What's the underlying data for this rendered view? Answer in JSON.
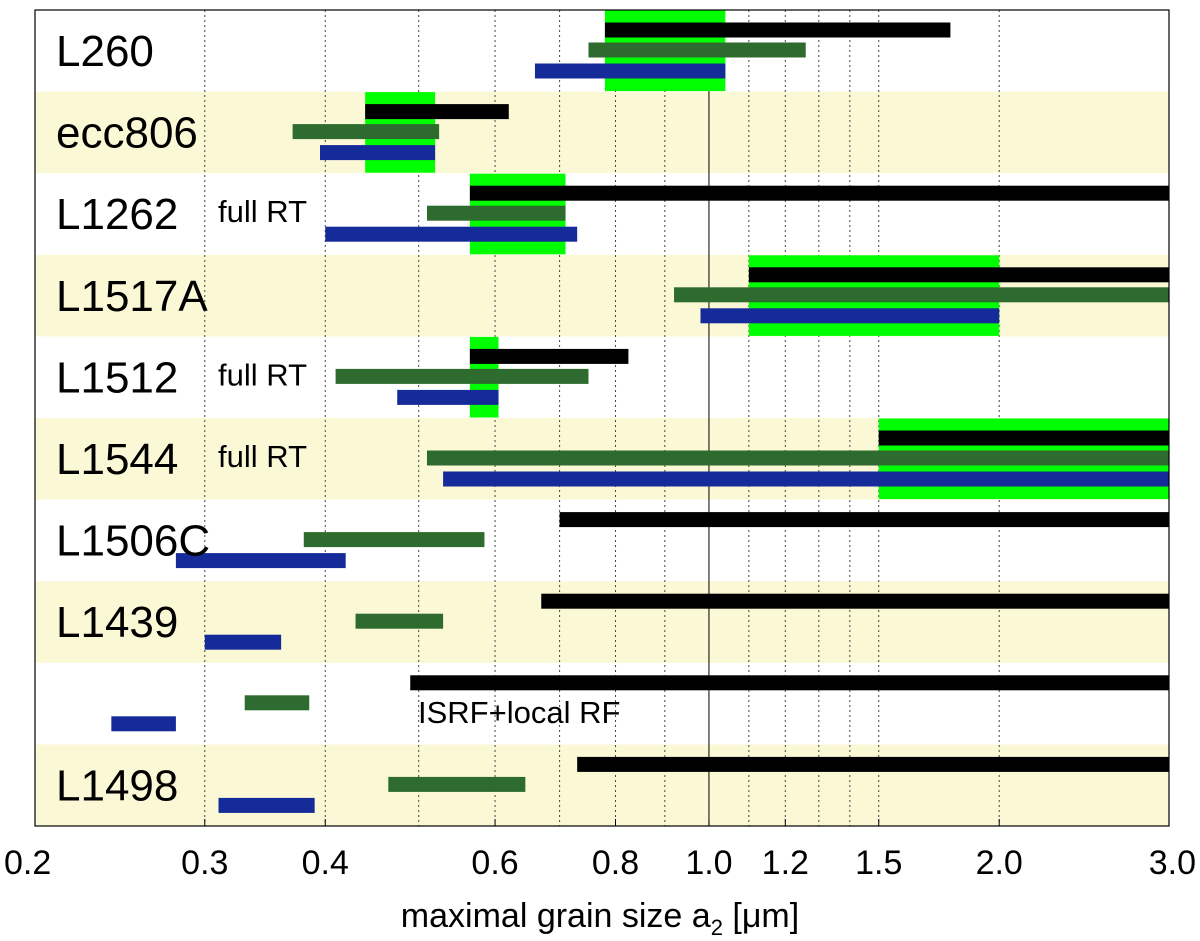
{
  "colors": {
    "shade": "#FBF8D6",
    "green_band": "#00FF00",
    "black": "#000000",
    "dark_green": "#2E6B2E",
    "blue": "#152B99"
  },
  "chart_data": {
    "type": "range-bar",
    "x_scale": "log",
    "xlim": [
      0.2,
      3.0
    ],
    "xlabel": "maximal grain size a",
    "xlabel_sub": "2",
    "xlabel_unit": " [μm]",
    "xticks": [
      0.2,
      0.3,
      0.4,
      0.6,
      0.8,
      1.0,
      1.2,
      1.5,
      2.0,
      3.0
    ],
    "xtick_labels": [
      "0.2",
      "0.3",
      "0.4",
      "0.6",
      "0.8",
      "1.0",
      "1.2",
      "1.5",
      "2.0",
      "3.0"
    ],
    "grid_dotted": [
      0.3,
      0.4,
      0.5,
      0.6,
      0.7,
      0.8,
      0.9,
      1.1,
      1.2,
      1.3,
      1.4,
      1.5,
      2.0
    ],
    "grid_solid": [
      1.0
    ],
    "series": [
      {
        "name": "black",
        "color_key": "black"
      },
      {
        "name": "dark-green",
        "color_key": "dark_green"
      },
      {
        "name": "blue",
        "color_key": "blue"
      }
    ],
    "rows": [
      {
        "label": "L260",
        "note": "",
        "shaded": false,
        "green_band": [
          0.78,
          1.04
        ],
        "black": [
          0.78,
          1.78
        ],
        "dark_green": [
          0.75,
          1.26
        ],
        "blue": [
          0.66,
          1.04
        ]
      },
      {
        "label": "ecc806",
        "note": "",
        "shaded": true,
        "green_band": [
          0.44,
          0.52
        ],
        "black": [
          0.44,
          0.62
        ],
        "dark_green": [
          0.37,
          0.525
        ],
        "blue": [
          0.395,
          0.52
        ]
      },
      {
        "label": "L1262",
        "note": "full RT",
        "shaded": false,
        "green_band": [
          0.565,
          0.71
        ],
        "black": [
          0.565,
          3.0
        ],
        "dark_green": [
          0.51,
          0.71
        ],
        "blue": [
          0.4,
          0.73
        ]
      },
      {
        "label": "L1517A",
        "note": "",
        "shaded": true,
        "green_band": [
          1.1,
          2.0
        ],
        "black": [
          1.1,
          3.0
        ],
        "dark_green": [
          0.92,
          3.0
        ],
        "blue": [
          0.98,
          2.0
        ]
      },
      {
        "label": "L1512",
        "note": "full RT",
        "shaded": false,
        "green_band": [
          0.565,
          0.605
        ],
        "black": [
          0.565,
          0.825
        ],
        "dark_green": [
          0.41,
          0.75
        ],
        "blue": [
          0.475,
          0.605
        ]
      },
      {
        "label": "L1544",
        "note": "full RT",
        "shaded": true,
        "green_band": [
          1.5,
          3.0
        ],
        "black": [
          1.5,
          3.0
        ],
        "dark_green": [
          0.51,
          3.0
        ],
        "blue": [
          0.53,
          3.0
        ]
      },
      {
        "label": "L1506C",
        "note": "",
        "shaded": false,
        "green_band": null,
        "black": [
          0.7,
          3.0
        ],
        "dark_green": [
          0.38,
          0.585
        ],
        "blue": [
          0.28,
          0.42
        ]
      },
      {
        "label": "L1439",
        "note": "",
        "shaded": true,
        "green_band": null,
        "black": [
          0.67,
          3.0
        ],
        "dark_green": [
          0.43,
          0.53
        ],
        "blue": [
          0.3,
          0.36
        ]
      },
      {
        "label": "",
        "note": "ISRF+local RF",
        "shaded": false,
        "green_band": null,
        "black": [
          0.49,
          3.0
        ],
        "dark_green": [
          0.33,
          0.385
        ],
        "blue": [
          0.24,
          0.28
        ]
      },
      {
        "label": "L1498",
        "note": "",
        "shaded": true,
        "green_band": null,
        "black": [
          0.73,
          3.0
        ],
        "dark_green": [
          0.465,
          0.645
        ],
        "blue": [
          0.31,
          0.39
        ]
      }
    ]
  }
}
